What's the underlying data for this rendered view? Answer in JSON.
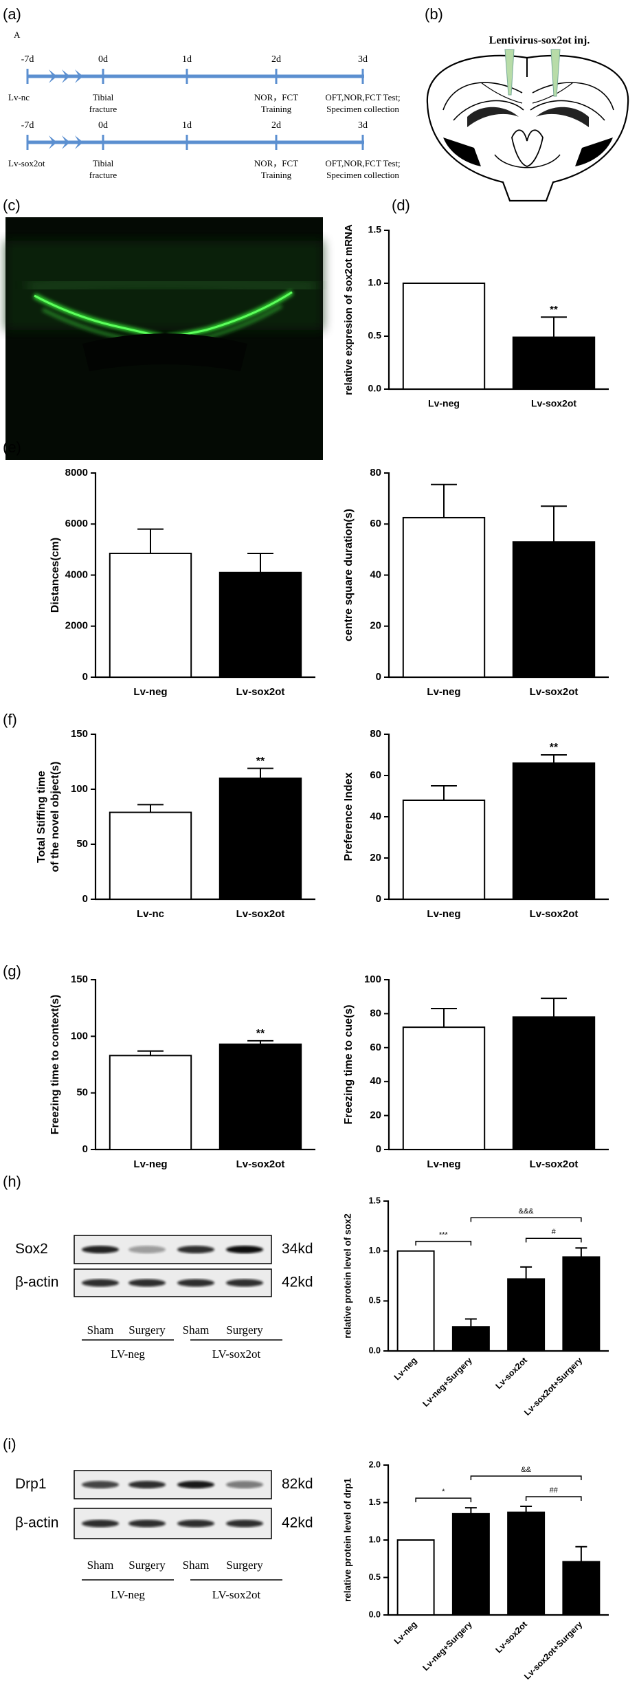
{
  "panel_labels": [
    "(a)",
    "(b)",
    "(c)",
    "(d)",
    "(e)",
    "(f)",
    "(g)",
    "(h)",
    "(i)"
  ],
  "timeline": {
    "label": "A",
    "rows": [
      {
        "group": "Lv-nc",
        "days": [
          "-7d",
          "0d",
          "1d",
          "2d",
          "3d"
        ],
        "events": [
          [
            "Tibial",
            "fracture"
          ],
          [
            "NOR，FCT",
            "Training"
          ],
          [
            "OFT,NOR,FCT Test;",
            "Specimen collection"
          ]
        ]
      },
      {
        "group": "Lv-sox2ot",
        "days": [
          "-7d",
          "0d",
          "1d",
          "2d",
          "3d"
        ],
        "events": [
          [
            "Tibial",
            "fracture"
          ],
          [
            "NOR，FCT",
            "Training"
          ],
          [
            "OFT,NOR,FCT Test;",
            "Specimen collection"
          ]
        ]
      }
    ]
  },
  "injection": {
    "label": "Lentivirus-sox2ot inj."
  },
  "blots": [
    {
      "proteins": [
        "Sox2",
        "β-actin"
      ],
      "sizes": [
        "34kd",
        "42kd"
      ],
      "lanes": [
        "Sham",
        "Surgery",
        "Sham",
        "Surgery"
      ],
      "groups": [
        "LV-neg",
        "LV-sox2ot"
      ]
    },
    {
      "proteins": [
        "Drp1",
        "β-actin"
      ],
      "sizes": [
        "82kd",
        "42kd"
      ],
      "lanes": [
        "Sham",
        "Surgery",
        "Sham",
        "Surgery"
      ],
      "groups": [
        "LV-neg",
        "LV-sox2ot"
      ]
    }
  ],
  "chart_data": [
    {
      "type": "bar",
      "categories": [
        "Lv-neg",
        "Lv-sox2ot"
      ],
      "values": [
        1,
        0.49
      ],
      "errors": [
        null,
        0.19
      ],
      "colors": [
        "#ffffff",
        "#000000"
      ],
      "ylim": [
        0,
        1.5
      ],
      "yticks": [
        {
          "value": 0,
          "label": "0.0"
        },
        0.5,
        {
          "value": 1,
          "label": "1.0"
        },
        1.5
      ],
      "ylabel": "relative expresion of sox2ot mRNA",
      "significance": [
        null,
        "**"
      ]
    },
    {
      "type": "bar",
      "categories": [
        "Lv-neg",
        "Lv-sox2ot"
      ],
      "values": [
        4850,
        4100
      ],
      "errors": [
        950,
        750
      ],
      "colors": [
        "#ffffff",
        "#000000"
      ],
      "ylim": [
        0,
        8000
      ],
      "yticks": [
        0,
        2000,
        4000,
        6000,
        8000
      ],
      "ylabel": "Distances(cm)"
    },
    {
      "type": "bar",
      "categories": [
        "Lv-neg",
        "Lv-sox2ot"
      ],
      "values": [
        62.5,
        53
      ],
      "errors": [
        13,
        14
      ],
      "colors": [
        "#ffffff",
        "#000000"
      ],
      "ylim": [
        0,
        80
      ],
      "yticks": [
        0,
        20,
        40,
        60,
        80
      ],
      "ylabel": "centre square duration(s)"
    },
    {
      "type": "bar",
      "categories": [
        "Lv-nc",
        "Lv-sox2ot"
      ],
      "values": [
        79,
        110
      ],
      "errors": [
        7,
        9
      ],
      "colors": [
        "#ffffff",
        "#000000"
      ],
      "ylim": [
        0,
        150
      ],
      "yticks": [
        0,
        50,
        100,
        150
      ],
      "ylabel": [
        "Total Stiffing time",
        "of the novel object(s)"
      ],
      "significance": [
        null,
        "**"
      ]
    },
    {
      "type": "bar",
      "categories": [
        "Lv-neg",
        "Lv-sox2ot"
      ],
      "values": [
        48,
        66
      ],
      "errors": [
        7,
        4
      ],
      "colors": [
        "#ffffff",
        "#000000"
      ],
      "ylim": [
        0,
        80
      ],
      "yticks": [
        0,
        20,
        40,
        60,
        80
      ],
      "ylabel": "Preference Index",
      "significance": [
        null,
        "**"
      ]
    },
    {
      "type": "bar",
      "categories": [
        "Lv-neg",
        "Lv-sox2ot"
      ],
      "values": [
        83,
        93
      ],
      "errors": [
        4,
        3
      ],
      "colors": [
        "#ffffff",
        "#000000"
      ],
      "ylim": [
        0,
        150
      ],
      "yticks": [
        0,
        50,
        100,
        150
      ],
      "ylabel": "Freezing  time  to context(s)",
      "significance": [
        null,
        "**"
      ]
    },
    {
      "type": "bar",
      "categories": [
        "Lv-neg",
        "Lv-sox2ot"
      ],
      "values": [
        72,
        78
      ],
      "errors": [
        11,
        11
      ],
      "colors": [
        "#ffffff",
        "#000000"
      ],
      "ylim": [
        0,
        100
      ],
      "yticks": [
        0,
        20,
        40,
        60,
        80,
        100
      ],
      "ylabel": "Freezing  time  to cue(s)"
    },
    {
      "type": "bar",
      "categories": [
        "Lv-neg",
        "Lv-neg+Surgery",
        "Lv-sox2ot",
        "Lv-sox2ot+Surgery"
      ],
      "values": [
        1,
        0.24,
        0.72,
        0.94
      ],
      "errors": [
        null,
        0.08,
        0.12,
        0.09
      ],
      "colors": [
        "#ffffff",
        "#000000",
        "#000000",
        "#000000"
      ],
      "ylim": [
        0,
        1.5
      ],
      "yticks": [
        {
          "value": 0,
          "label": "0.0"
        },
        0.5,
        {
          "value": 1,
          "label": "1.0"
        },
        1.5
      ],
      "ylabel": "relative protein level of sox2",
      "xtick_rotation": 45,
      "comparisons": [
        {
          "text": "***",
          "between": [
            "Lv-neg",
            "Lv-neg+Surgery"
          ]
        },
        {
          "text": "&&&",
          "between": [
            "Lv-neg+Surgery",
            "Lv-sox2ot+Surgery"
          ]
        },
        {
          "text": "#",
          "between": [
            "Lv-sox2ot",
            "Lv-sox2ot+Surgery"
          ]
        }
      ]
    },
    {
      "type": "bar",
      "categories": [
        "Lv-neg",
        "Lv-neg+Surgery",
        "Lv-sox2ot",
        "Lv-sox2ot+Surgery"
      ],
      "values": [
        1,
        1.35,
        1.37,
        0.71
      ],
      "errors": [
        null,
        0.08,
        0.08,
        0.2
      ],
      "colors": [
        "#ffffff",
        "#000000",
        "#000000",
        "#000000"
      ],
      "ylim": [
        0,
        2
      ],
      "yticks": [
        {
          "value": 0,
          "label": "0.0"
        },
        0.5,
        {
          "value": 1,
          "label": "1.0"
        },
        1.5,
        {
          "value": 2,
          "label": "2.0"
        }
      ],
      "ylabel": "relative protein level of drp1",
      "xtick_rotation": 45,
      "comparisons": [
        {
          "text": "*",
          "between": [
            "Lv-neg",
            "Lv-neg+Surgery"
          ]
        },
        {
          "text": "&&",
          "between": [
            "Lv-neg+Surgery",
            "Lv-sox2ot+Surgery"
          ]
        },
        {
          "text": "##",
          "between": [
            "Lv-sox2ot",
            "Lv-sox2ot+Surgery"
          ]
        }
      ]
    }
  ]
}
